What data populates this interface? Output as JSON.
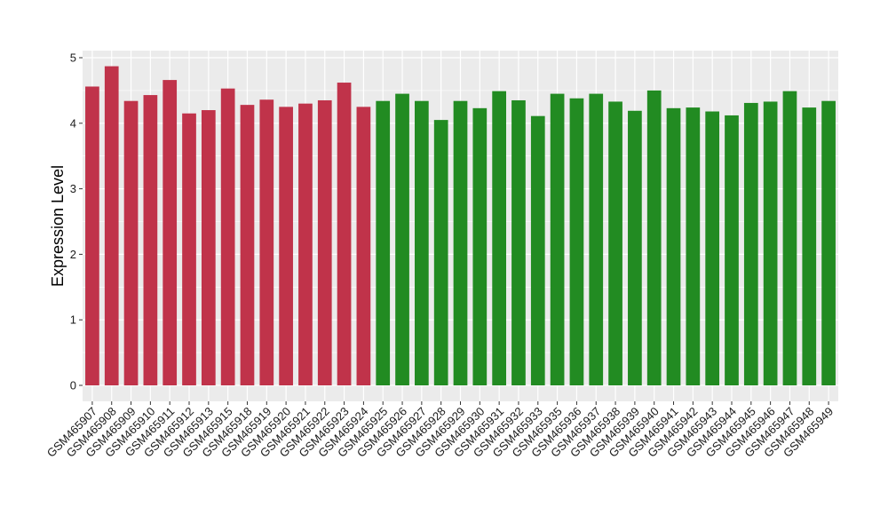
{
  "chart_data": {
    "type": "bar",
    "title": "",
    "xlabel": "",
    "ylabel": "Expression Level",
    "ylim": [
      0,
      5.1
    ],
    "yticks": [
      0,
      1,
      2,
      3,
      4,
      5
    ],
    "grid": true,
    "colors": {
      "panel": "#ebebeb",
      "grid": "#ffffff",
      "group1": "#c0334a",
      "group2": "#228b22"
    },
    "categories": [
      "GSM465907",
      "GSM465908",
      "GSM465909",
      "GSM465910",
      "GSM465911",
      "GSM465912",
      "GSM465913",
      "GSM465915",
      "GSM465918",
      "GSM465919",
      "GSM465920",
      "GSM465921",
      "GSM465922",
      "GSM465923",
      "GSM465924",
      "GSM465925",
      "GSM465926",
      "GSM465927",
      "GSM465928",
      "GSM465929",
      "GSM465930",
      "GSM465931",
      "GSM465932",
      "GSM465933",
      "GSM465935",
      "GSM465936",
      "GSM465937",
      "GSM465938",
      "GSM465939",
      "GSM465940",
      "GSM465941",
      "GSM465942",
      "GSM465943",
      "GSM465944",
      "GSM465945",
      "GSM465946",
      "GSM465947",
      "GSM465948",
      "GSM465949"
    ],
    "values": [
      4.56,
      4.87,
      4.34,
      4.43,
      4.66,
      4.15,
      4.2,
      4.53,
      4.28,
      4.36,
      4.25,
      4.3,
      4.35,
      4.62,
      4.25,
      4.34,
      4.45,
      4.34,
      4.05,
      4.34,
      4.23,
      4.49,
      4.35,
      4.11,
      4.45,
      4.38,
      4.45,
      4.33,
      4.19,
      4.5,
      4.23,
      4.24,
      4.18,
      4.12,
      4.31,
      4.33,
      4.49,
      4.24,
      4.34
    ],
    "groups": [
      1,
      1,
      1,
      1,
      1,
      1,
      1,
      1,
      1,
      1,
      1,
      1,
      1,
      1,
      1,
      2,
      2,
      2,
      2,
      2,
      2,
      2,
      2,
      2,
      2,
      2,
      2,
      2,
      2,
      2,
      2,
      2,
      2,
      2,
      2,
      2,
      2,
      2,
      2
    ]
  }
}
